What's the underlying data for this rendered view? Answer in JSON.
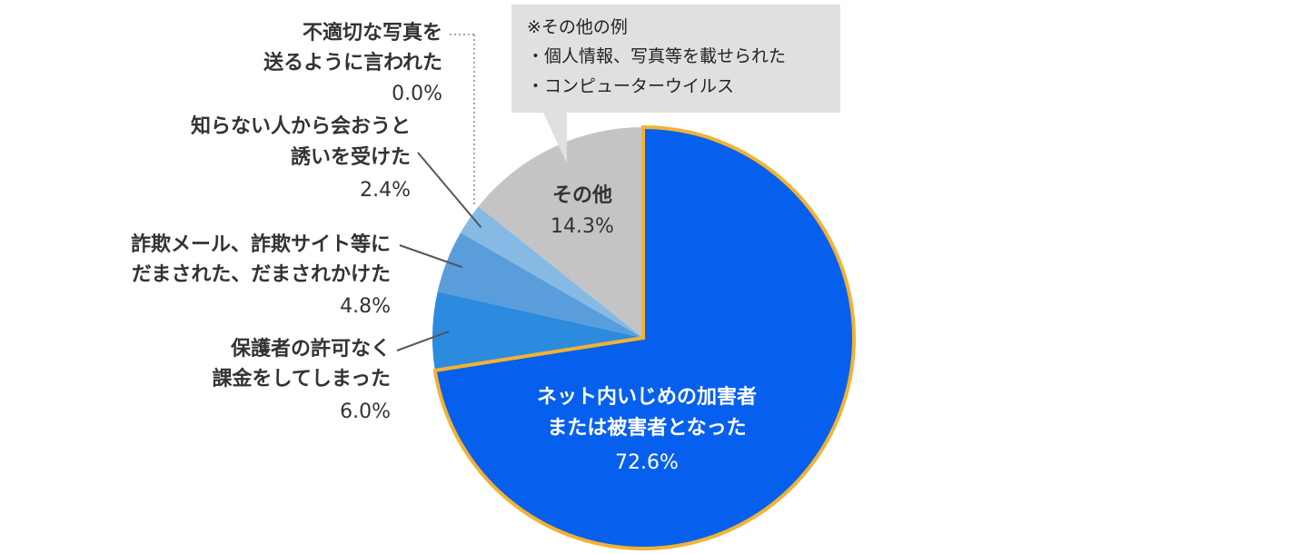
{
  "chart_data": {
    "type": "pie",
    "start": "12 o'clock",
    "direction": "clockwise",
    "series": [
      {
        "name": "ネット内いじめの加害者または被害者となった",
        "lines": [
          "ネット内いじめの加害者",
          "または被害者となった"
        ],
        "value": 72.6,
        "label": "72.6%",
        "color": "#0760ED",
        "highlight_border": "#F2B233",
        "label_position": "inside"
      },
      {
        "name": "保護者の許可なく課金をしてしまった",
        "lines": [
          "保護者の許可なく",
          "課金をしてしまった"
        ],
        "value": 6.0,
        "label": "6.0%",
        "color": "#2C8BDF",
        "label_position": "outside-left"
      },
      {
        "name": "詐欺メール、詐欺サイト等にだまされた、だまされかけた",
        "lines": [
          "詐欺メール、詐欺サイト等に",
          "だまされた、だまされかけた"
        ],
        "value": 4.8,
        "label": "4.8%",
        "color": "#5A9DDB",
        "label_position": "outside-left"
      },
      {
        "name": "知らない人から会おうと誘いを受けた",
        "lines": [
          "知らない人から会おうと",
          "誘いを受けた"
        ],
        "value": 2.4,
        "label": "2.4%",
        "color": "#86BAE4",
        "label_position": "outside-left"
      },
      {
        "name": "不適切な写真を送るように言われた",
        "lines": [
          "不適切な写真を",
          "送るように言われた"
        ],
        "value": 0.0,
        "label": "0.0%",
        "color": "#A9CBEA",
        "label_position": "outside-left"
      },
      {
        "name": "その他",
        "lines": [
          "その他"
        ],
        "value": 14.3,
        "label": "14.3%",
        "color": "#C4C4C4",
        "label_position": "inside"
      }
    ],
    "note": {
      "lines": [
        "※その他の例",
        "・個人情報、写真等を載せられた",
        "・コンピューターウイルス"
      ],
      "background": "#E0E0E0",
      "attached_to": "その他"
    },
    "colors": {
      "text_dark": "#333333",
      "text_light": "#ffffff",
      "leader": "#555555",
      "dotted_leader": "#888888"
    }
  }
}
